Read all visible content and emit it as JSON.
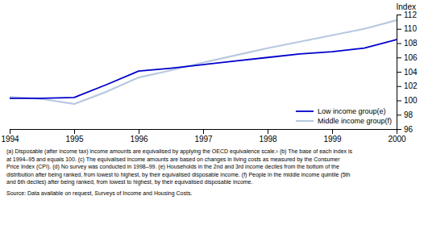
{
  "chart_data": {
    "type": "line",
    "title": "Index",
    "x": [
      1994,
      1994.5,
      1995,
      1995.5,
      1996,
      1996.5,
      1997,
      1997.5,
      1998,
      1998.5,
      1999,
      1999.5,
      2000
    ],
    "series": [
      {
        "name": "Low income group(e)",
        "color": "#0000cc",
        "values": [
          100.3,
          100.3,
          100.4,
          102.2,
          104.1,
          104.5,
          105.0,
          105.5,
          106.0,
          106.5,
          106.8,
          107.3,
          108.5
        ]
      },
      {
        "name": "Middle income group(f)",
        "color": "#b8c8e0",
        "values": [
          100.5,
          100.2,
          99.5,
          101.2,
          103.2,
          104.2,
          105.3,
          106.3,
          107.3,
          108.2,
          109.1,
          110.0,
          111.2
        ]
      }
    ],
    "xlim": [
      1994,
      2000
    ],
    "ylim": [
      96,
      112
    ],
    "xticks": [
      1994,
      1995,
      1996,
      1997,
      1998,
      1999,
      2000
    ],
    "yticks": [
      96,
      98,
      100,
      102,
      104,
      106,
      108,
      110,
      112
    ],
    "grid": false,
    "legend": "lower right",
    "annotations": [
      "(a) Disposable (after income tax) income amounts are equivalised by applying the OECD equivalence scale.¹ (b) The base of each index is",
      "at 1994–95 and equals 100. (c) The equivalised income amounts are based on changes in living costs as measured by the Consumer",
      "Price Index (CPI). (d) No survey was conducted in 1998–99. (e) Households in the 2nd and 3rd income deciles from the bottom of the",
      "distribution after being ranked, from lowest to highest, by their equivalised disposable income. (f) People in the middle income quintile (5th",
      "and 6th deciles) after being ranked, from lowest to highest, by their equivalised disposable income.",
      "Source: Data available on request, Surveys of Income and Housing Costs."
    ]
  }
}
